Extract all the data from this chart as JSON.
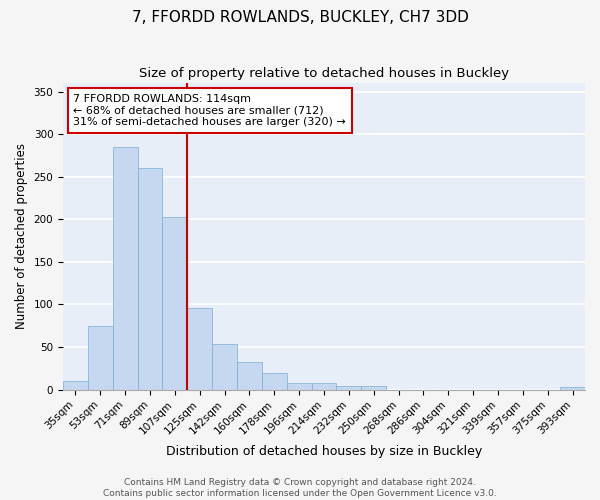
{
  "title1": "7, FFORDD ROWLANDS, BUCKLEY, CH7 3DD",
  "title2": "Size of property relative to detached houses in Buckley",
  "xlabel": "Distribution of detached houses by size in Buckley",
  "ylabel": "Number of detached properties",
  "categories": [
    "35sqm",
    "53sqm",
    "71sqm",
    "89sqm",
    "107sqm",
    "125sqm",
    "142sqm",
    "160sqm",
    "178sqm",
    "196sqm",
    "214sqm",
    "232sqm",
    "250sqm",
    "268sqm",
    "286sqm",
    "304sqm",
    "321sqm",
    "339sqm",
    "357sqm",
    "375sqm",
    "393sqm"
  ],
  "values": [
    10,
    75,
    285,
    260,
    203,
    96,
    53,
    32,
    20,
    8,
    8,
    4,
    4,
    0,
    0,
    0,
    0,
    0,
    0,
    0,
    3
  ],
  "bar_color": "#c5d8f0",
  "bar_edge_color": "#7aaed4",
  "background_color": "#e8eef8",
  "grid_color": "#ffffff",
  "vline_x_index": 4.5,
  "vline_color": "#cc0000",
  "annotation_box_edge": "#cc0000",
  "property_label": "7 FFORDD ROWLANDS: 114sqm",
  "stat1": "← 68% of detached houses are smaller (712)",
  "stat2": "31% of semi-detached houses are larger (320) →",
  "ylim": [
    0,
    360
  ],
  "yticks": [
    0,
    50,
    100,
    150,
    200,
    250,
    300,
    350
  ],
  "footer1": "Contains HM Land Registry data © Crown copyright and database right 2024.",
  "footer2": "Contains public sector information licensed under the Open Government Licence v3.0.",
  "title1_fontsize": 11,
  "title2_fontsize": 9.5,
  "xlabel_fontsize": 9,
  "ylabel_fontsize": 8.5,
  "tick_fontsize": 7.5,
  "ann_fontsize": 8,
  "footer_fontsize": 6.5
}
